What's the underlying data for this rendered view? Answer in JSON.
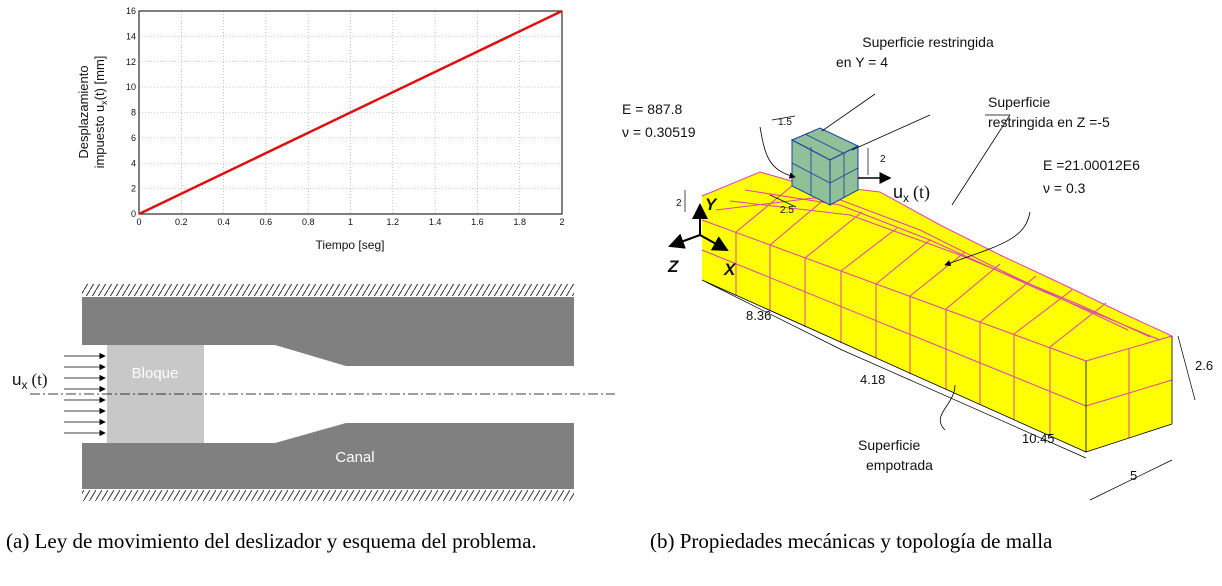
{
  "chart_data": {
    "type": "line",
    "xlabel": "Tiempo [seg]",
    "ylabel_line1": "Desplazamiento",
    "ylabel_line2": "impuesto u",
    "ylabel_sub": "x",
    "ylabel_line2_tail": "(t) [mm]",
    "xlim": [
      0,
      2
    ],
    "ylim": [
      0,
      16
    ],
    "xticks": [
      "0",
      "0.2",
      "0.4",
      "0.6",
      "0.8",
      "1",
      "1.2",
      "1.4",
      "1.6",
      "1.8",
      "2"
    ],
    "yticks": [
      "0",
      "2",
      "4",
      "6",
      "8",
      "10",
      "12",
      "14",
      "16"
    ],
    "grid": true,
    "series": [
      {
        "x": [
          0,
          2
        ],
        "y": [
          0,
          16
        ],
        "color": "#dd1111"
      }
    ]
  },
  "schematic": {
    "input_label": "u",
    "input_sub": "x",
    "input_tail": "(t)",
    "block_label": "Bloque",
    "channel_label": "Canal",
    "wall_color": "#808080",
    "block_color": "#c8c8c8"
  },
  "mesh": {
    "label_restricted_y_1": "Superficie restringida",
    "label_restricted_y_2": "en Y = 4",
    "label_restricted_z_1": "Superficie",
    "label_restricted_z_2": "restringida en Z =-5",
    "block_E": "E = 887.8",
    "block_nu": "ν = 0.30519",
    "channel_E": "E =21.00012E6",
    "channel_nu": "ν = 0.3",
    "dim_1_5": "1.5",
    "dim_2_block": "2",
    "dim_2_5": "2.5",
    "dim_2_left": "2",
    "disp_label": "u",
    "disp_sub": "x",
    "disp_tail": "(t)",
    "axis_y": "Y",
    "axis_z": "Z",
    "axis_x": "X",
    "dim_8_36": "8.36",
    "dim_4_18": "4.18",
    "dim_10_45": "10.45",
    "dim_2_6": "2.6",
    "dim_5": "5",
    "label_fixed_1": "Superficie",
    "label_fixed_2": "empotrada",
    "mesh_color": "#ffff00",
    "mesh_line_color": "#dd44aa",
    "block_mesh_color": "#8fc09a"
  },
  "captions": {
    "a": "(a) Ley de movimiento del deslizador y esquema del problema.",
    "b": "(b) Propiedades mecánicas y topología de malla"
  }
}
